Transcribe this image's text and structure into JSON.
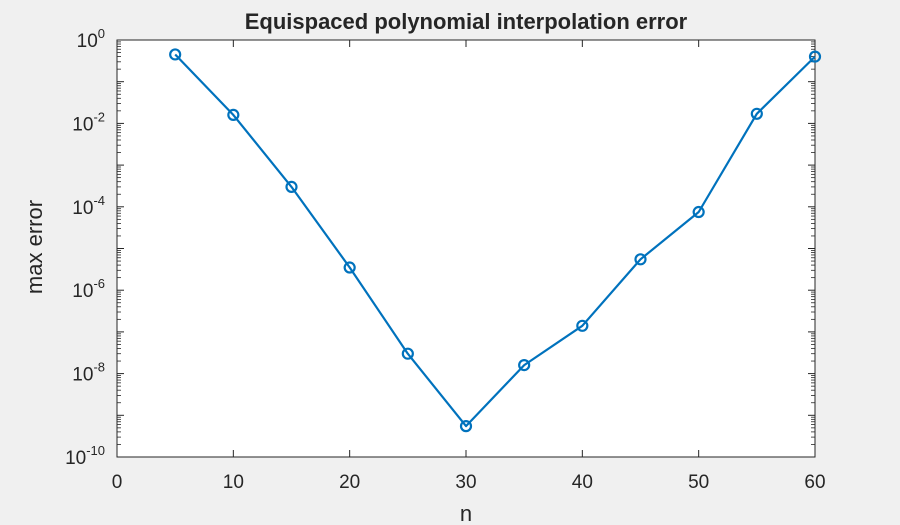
{
  "chart_data": {
    "type": "line",
    "title": "Equispaced polynomial interpolation error",
    "xlabel": "n",
    "ylabel": "max error",
    "yscale": "log",
    "xlim": [
      0,
      60
    ],
    "ylim": [
      1e-10,
      1
    ],
    "xticks": [
      0,
      10,
      20,
      30,
      40,
      50,
      60
    ],
    "yticks": [
      {
        "base": "10",
        "exp": "0",
        "value": 1
      },
      {
        "base": "10",
        "exp": "-2",
        "value": 0.01
      },
      {
        "base": "10",
        "exp": "-4",
        "value": 0.0001
      },
      {
        "base": "10",
        "exp": "-6",
        "value": 1e-06
      },
      {
        "base": "10",
        "exp": "-8",
        "value": 1e-08
      },
      {
        "base": "10",
        "exp": "-10",
        "value": 1e-10
      }
    ],
    "grid": false,
    "marker": "circle",
    "series": [
      {
        "color": "#0072bd",
        "x": [
          5,
          10,
          15,
          20,
          25,
          30,
          35,
          40,
          45,
          50,
          55,
          60
        ],
        "y": [
          0.45,
          0.016,
          0.0003,
          3.5e-06,
          3e-08,
          5.5e-10,
          1.6e-08,
          1.4e-07,
          5.5e-06,
          7.5e-05,
          0.017,
          0.4
        ]
      }
    ]
  },
  "colors": {
    "background": "#f0f0f0",
    "axes_background": "#ffffff",
    "axis": "#262626",
    "line": "#0072bd"
  }
}
